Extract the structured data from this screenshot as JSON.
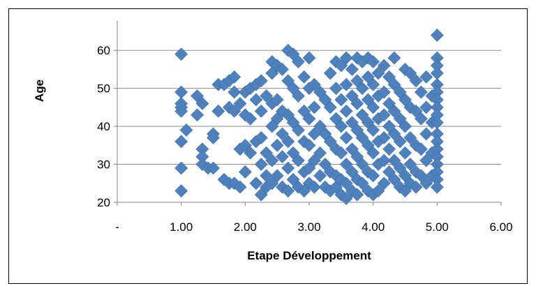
{
  "chart_data": {
    "type": "scatter",
    "xlabel": "Etape Développement",
    "ylabel": "Age",
    "xlim": [
      0,
      6
    ],
    "ylim": [
      20,
      65
    ],
    "x_ticks": [
      0,
      1,
      2,
      3,
      4,
      5,
      6
    ],
    "x_tick_labels": [
      "-",
      "1.00",
      "2.00",
      "3.00",
      "4.00",
      "5.00",
      "6.00"
    ],
    "y_ticks": [
      20,
      30,
      40,
      50,
      60
    ],
    "y_tick_labels": [
      "20",
      "30",
      "40",
      "50",
      "60"
    ],
    "grid": "horizontal",
    "legend": "none",
    "marker": "diamond",
    "color": "#4F81BD",
    "points": [
      [
        1.0,
        59
      ],
      [
        1.0,
        49
      ],
      [
        1.0,
        46
      ],
      [
        1.0,
        45
      ],
      [
        1.0,
        44
      ],
      [
        1.0,
        36
      ],
      [
        1.0,
        29
      ],
      [
        1.0,
        23
      ],
      [
        1.08,
        39
      ],
      [
        1.25,
        48
      ],
      [
        1.25,
        43
      ],
      [
        1.33,
        46
      ],
      [
        1.33,
        34
      ],
      [
        1.33,
        32
      ],
      [
        1.33,
        30
      ],
      [
        1.42,
        29
      ],
      [
        1.5,
        38
      ],
      [
        1.5,
        37
      ],
      [
        1.5,
        29
      ],
      [
        1.58,
        51
      ],
      [
        1.58,
        44
      ],
      [
        1.67,
        51
      ],
      [
        1.67,
        26
      ],
      [
        1.75,
        52
      ],
      [
        1.75,
        45
      ],
      [
        1.75,
        25
      ],
      [
        1.83,
        53
      ],
      [
        1.83,
        49
      ],
      [
        1.83,
        44
      ],
      [
        1.83,
        25
      ],
      [
        1.92,
        46
      ],
      [
        1.92,
        34
      ],
      [
        1.92,
        24
      ],
      [
        2.0,
        49
      ],
      [
        2.0,
        43
      ],
      [
        2.0,
        35
      ],
      [
        2.0,
        28
      ],
      [
        2.08,
        50
      ],
      [
        2.08,
        42
      ],
      [
        2.08,
        33
      ],
      [
        2.17,
        51
      ],
      [
        2.17,
        47
      ],
      [
        2.17,
        36
      ],
      [
        2.17,
        25
      ],
      [
        2.25,
        52
      ],
      [
        2.25,
        44
      ],
      [
        2.25,
        37
      ],
      [
        2.25,
        30
      ],
      [
        2.25,
        22
      ],
      [
        2.33,
        48
      ],
      [
        2.33,
        33
      ],
      [
        2.33,
        27
      ],
      [
        2.33,
        24
      ],
      [
        2.42,
        57
      ],
      [
        2.42,
        54
      ],
      [
        2.42,
        46
      ],
      [
        2.42,
        40
      ],
      [
        2.42,
        31
      ],
      [
        2.42,
        25
      ],
      [
        2.5,
        56
      ],
      [
        2.5,
        47
      ],
      [
        2.5,
        42
      ],
      [
        2.5,
        35
      ],
      [
        2.5,
        27
      ],
      [
        2.58,
        55
      ],
      [
        2.58,
        44
      ],
      [
        2.58,
        38
      ],
      [
        2.58,
        32
      ],
      [
        2.58,
        24
      ],
      [
        2.67,
        60
      ],
      [
        2.67,
        52
      ],
      [
        2.67,
        43
      ],
      [
        2.67,
        36
      ],
      [
        2.67,
        29
      ],
      [
        2.67,
        23
      ],
      [
        2.75,
        59
      ],
      [
        2.75,
        50
      ],
      [
        2.75,
        41
      ],
      [
        2.75,
        33
      ],
      [
        2.75,
        26
      ],
      [
        2.83,
        57
      ],
      [
        2.83,
        48
      ],
      [
        2.83,
        39
      ],
      [
        2.83,
        31
      ],
      [
        2.83,
        24
      ],
      [
        2.92,
        53
      ],
      [
        2.92,
        44
      ],
      [
        2.92,
        36
      ],
      [
        2.92,
        28
      ],
      [
        2.92,
        23
      ],
      [
        3.0,
        58
      ],
      [
        3.0,
        50
      ],
      [
        3.0,
        42
      ],
      [
        3.0,
        35
      ],
      [
        3.0,
        29
      ],
      [
        3.0,
        25
      ],
      [
        3.08,
        51
      ],
      [
        3.08,
        45
      ],
      [
        3.08,
        38
      ],
      [
        3.08,
        31
      ],
      [
        3.08,
        24
      ],
      [
        3.17,
        49
      ],
      [
        3.17,
        40
      ],
      [
        3.17,
        33
      ],
      [
        3.17,
        27
      ],
      [
        3.25,
        47
      ],
      [
        3.25,
        38
      ],
      [
        3.25,
        30
      ],
      [
        3.25,
        24
      ],
      [
        3.33,
        54
      ],
      [
        3.33,
        45
      ],
      [
        3.33,
        36
      ],
      [
        3.33,
        28
      ],
      [
        3.33,
        23
      ],
      [
        3.42,
        57
      ],
      [
        3.42,
        50
      ],
      [
        3.42,
        42
      ],
      [
        3.42,
        34
      ],
      [
        3.42,
        27
      ],
      [
        3.42,
        24
      ],
      [
        3.5,
        56
      ],
      [
        3.5,
        47
      ],
      [
        3.5,
        40
      ],
      [
        3.5,
        33
      ],
      [
        3.5,
        26
      ],
      [
        3.5,
        22
      ],
      [
        3.58,
        58
      ],
      [
        3.58,
        51
      ],
      [
        3.58,
        44
      ],
      [
        3.58,
        37
      ],
      [
        3.58,
        30
      ],
      [
        3.58,
        25
      ],
      [
        3.58,
        21
      ],
      [
        3.67,
        55
      ],
      [
        3.67,
        48
      ],
      [
        3.67,
        41
      ],
      [
        3.67,
        34
      ],
      [
        3.67,
        28
      ],
      [
        3.67,
        23
      ],
      [
        3.75,
        58
      ],
      [
        3.75,
        52
      ],
      [
        3.75,
        46
      ],
      [
        3.75,
        39
      ],
      [
        3.75,
        32
      ],
      [
        3.75,
        26
      ],
      [
        3.75,
        22
      ],
      [
        3.83,
        57
      ],
      [
        3.83,
        50
      ],
      [
        3.83,
        43
      ],
      [
        3.83,
        37
      ],
      [
        3.83,
        30
      ],
      [
        3.83,
        25
      ],
      [
        3.92,
        58
      ],
      [
        3.92,
        53
      ],
      [
        3.92,
        47
      ],
      [
        3.92,
        41
      ],
      [
        3.92,
        35
      ],
      [
        3.92,
        28
      ],
      [
        3.92,
        23
      ],
      [
        4.0,
        57
      ],
      [
        4.0,
        51
      ],
      [
        4.0,
        45
      ],
      [
        4.0,
        39
      ],
      [
        4.0,
        33
      ],
      [
        4.0,
        27
      ],
      [
        4.0,
        22
      ],
      [
        4.08,
        54
      ],
      [
        4.08,
        48
      ],
      [
        4.08,
        42
      ],
      [
        4.08,
        36
      ],
      [
        4.08,
        30
      ],
      [
        4.08,
        23
      ],
      [
        4.17,
        56
      ],
      [
        4.17,
        49
      ],
      [
        4.17,
        43
      ],
      [
        4.17,
        37
      ],
      [
        4.17,
        31
      ],
      [
        4.17,
        25
      ],
      [
        4.25,
        53
      ],
      [
        4.25,
        46
      ],
      [
        4.25,
        40
      ],
      [
        4.25,
        34
      ],
      [
        4.25,
        28
      ],
      [
        4.33,
        58
      ],
      [
        4.33,
        51
      ],
      [
        4.33,
        44
      ],
      [
        4.33,
        38
      ],
      [
        4.33,
        31
      ],
      [
        4.33,
        26
      ],
      [
        4.42,
        49
      ],
      [
        4.42,
        42
      ],
      [
        4.42,
        36
      ],
      [
        4.42,
        29
      ],
      [
        4.42,
        24
      ],
      [
        4.5,
        55
      ],
      [
        4.5,
        47
      ],
      [
        4.5,
        40
      ],
      [
        4.5,
        33
      ],
      [
        4.5,
        27
      ],
      [
        4.5,
        23
      ],
      [
        4.58,
        54
      ],
      [
        4.58,
        45
      ],
      [
        4.58,
        37
      ],
      [
        4.58,
        30
      ],
      [
        4.58,
        25
      ],
      [
        4.67,
        52
      ],
      [
        4.67,
        44
      ],
      [
        4.67,
        35
      ],
      [
        4.67,
        28
      ],
      [
        4.67,
        24
      ],
      [
        4.75,
        49
      ],
      [
        4.75,
        42
      ],
      [
        4.75,
        34
      ],
      [
        4.75,
        27
      ],
      [
        4.83,
        53
      ],
      [
        4.83,
        45
      ],
      [
        4.83,
        38
      ],
      [
        4.83,
        31
      ],
      [
        4.83,
        25
      ],
      [
        4.92,
        48
      ],
      [
        4.92,
        41
      ],
      [
        4.92,
        33
      ],
      [
        4.92,
        27
      ],
      [
        5.0,
        64
      ],
      [
        5.0,
        58
      ],
      [
        5.0,
        56
      ],
      [
        5.0,
        54
      ],
      [
        5.0,
        51
      ],
      [
        5.0,
        49
      ],
      [
        5.0,
        47
      ],
      [
        5.0,
        45
      ],
      [
        5.0,
        43
      ],
      [
        5.0,
        41
      ],
      [
        5.0,
        38
      ],
      [
        5.0,
        36
      ],
      [
        5.0,
        34
      ],
      [
        5.0,
        32
      ],
      [
        5.0,
        30
      ],
      [
        5.0,
        28
      ],
      [
        5.0,
        26
      ],
      [
        5.0,
        24
      ]
    ]
  }
}
